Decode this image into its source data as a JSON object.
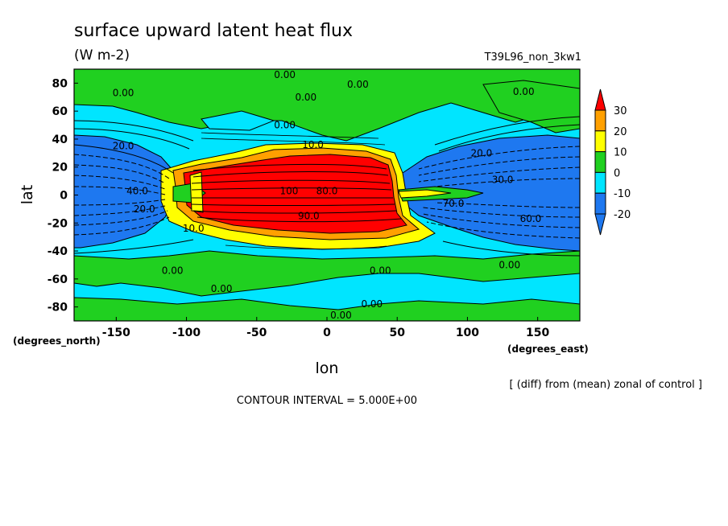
{
  "chart_data": {
    "type": "heatmap",
    "title": "surface upward latent heat flux",
    "units": "(W m-2)",
    "run_label": "T39L96_non_3kw1",
    "xlabel": "lon",
    "ylabel": "lat",
    "x_unit_label": "(degrees_east)",
    "y_unit_label": "(degrees_north)",
    "xlim": [
      -180,
      180
    ],
    "ylim": [
      -90,
      90
    ],
    "x_ticks": [
      -150,
      -100,
      -50,
      0,
      50,
      100,
      150
    ],
    "y_ticks": [
      -80,
      -60,
      -40,
      -20,
      0,
      20,
      40,
      60,
      80
    ],
    "colorbar": {
      "levels": [
        -20,
        -10,
        0,
        10,
        20,
        30
      ],
      "colors": [
        "#1e78f0",
        "#00e5ff",
        "#20d020",
        "#ffff00",
        "#ffa000",
        "#ff0000"
      ],
      "extend": "both"
    },
    "contour_interval_text": "CONTOUR INTERVAL = 5.000E+00",
    "note": "[ (diff) from (mean) zonal of control ]",
    "contour_labels": [
      {
        "text": "0.00",
        "lon": -145,
        "lat": 73
      },
      {
        "text": "0.00",
        "lon": -30,
        "lat": 86
      },
      {
        "text": "0.00",
        "lon": 22,
        "lat": 79
      },
      {
        "text": "0.00",
        "lon": -15,
        "lat": 70
      },
      {
        "text": "0.00",
        "lon": -30,
        "lat": 50
      },
      {
        "text": "0.00",
        "lon": 140,
        "lat": 74
      },
      {
        "text": "10.0",
        "lon": -10,
        "lat": 36
      },
      {
        "text": "20.0",
        "lon": 110,
        "lat": 30
      },
      {
        "text": "20.0",
        "lon": -145,
        "lat": 35
      },
      {
        "text": "30.0",
        "lon": 125,
        "lat": 11
      },
      {
        "text": "40.0",
        "lon": -135,
        "lat": 3
      },
      {
        "text": "20.0",
        "lon": -130,
        "lat": -10
      },
      {
        "text": "100",
        "lon": -27,
        "lat": 3
      },
      {
        "text": "80.0",
        "lon": 0,
        "lat": 3
      },
      {
        "text": "90.0",
        "lon": -13,
        "lat": -15
      },
      {
        "text": "70.0",
        "lon": 90,
        "lat": -6
      },
      {
        "text": "60.0",
        "lon": 145,
        "lat": -17
      },
      {
        "text": "10.0",
        "lon": -95,
        "lat": -24
      },
      {
        "text": "0.00",
        "lon": -110,
        "lat": -54
      },
      {
        "text": "0.00",
        "lon": -75,
        "lat": -67
      },
      {
        "text": "0.00",
        "lon": 38,
        "lat": -54
      },
      {
        "text": "0.00",
        "lon": 130,
        "lat": -50
      },
      {
        "text": "0.00",
        "lon": 32,
        "lat": -78
      },
      {
        "text": "0.00",
        "lon": 10,
        "lat": -86
      }
    ]
  }
}
